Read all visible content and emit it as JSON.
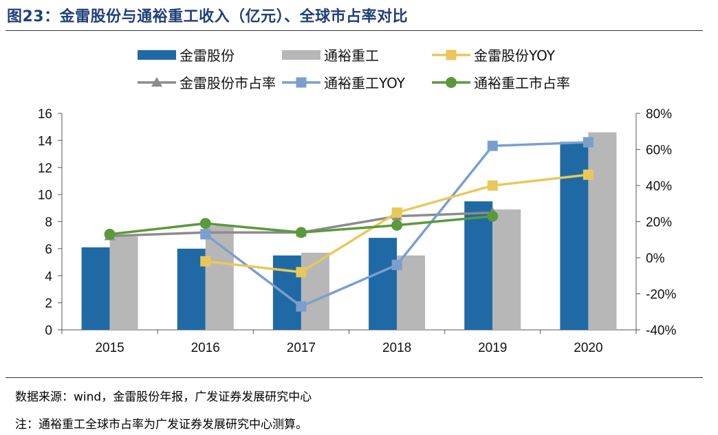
{
  "figure": {
    "title": "图23：金雷股份与通裕重工收入（亿元）、全球市占率对比",
    "source": "数据来源：wind，金雷股份年报，广发证券发展研究中心",
    "note": "注：通裕重工全球市占率为广发证券发展研究中心测算。"
  },
  "colors": {
    "title": "#1f3f77",
    "jinlei_bar": "#1f6aa5",
    "tongyu_bar": "#b7b7b7",
    "jinlei_yoy": "#e8c85a",
    "jinlei_share": "#8c8c8c",
    "tongyu_yoy": "#7a9fcf",
    "tongyu_share": "#5a9a3a"
  },
  "chart_data": {
    "type": "bar",
    "categories": [
      "2015",
      "2016",
      "2017",
      "2018",
      "2019",
      "2020"
    ],
    "left_axis": {
      "ylim": [
        0,
        16
      ],
      "ticks": [
        "0",
        "2",
        "4",
        "6",
        "8",
        "10",
        "12",
        "14",
        "16"
      ]
    },
    "right_axis": {
      "ylim": [
        -40,
        80
      ],
      "ticks": [
        "-40%",
        "-20%",
        "0%",
        "20%",
        "40%",
        "60%",
        "80%"
      ]
    },
    "legend": [
      {
        "name": "金雷股份",
        "kind": "bar",
        "color": "#1f6aa5"
      },
      {
        "name": "通裕重工",
        "kind": "bar",
        "color": "#b7b7b7"
      },
      {
        "name": "金雷股份YOY",
        "kind": "line-square",
        "color": "#e8c85a"
      },
      {
        "name": "金雷股份市占率",
        "kind": "line-triangle",
        "color": "#8c8c8c"
      },
      {
        "name": "通裕重工YOY",
        "kind": "line-square",
        "color": "#7a9fcf"
      },
      {
        "name": "通裕重工市占率",
        "kind": "line-circle",
        "color": "#5a9a3a"
      }
    ],
    "bar_series": [
      {
        "name": "金雷股份",
        "values": [
          6.1,
          6.0,
          5.5,
          6.8,
          9.5,
          13.9
        ]
      },
      {
        "name": "通裕重工",
        "values": [
          6.9,
          7.7,
          5.7,
          5.5,
          8.9,
          14.6
        ]
      }
    ],
    "line_series": [
      {
        "name": "金雷股份市占率",
        "axis": "right",
        "marker": "triangle",
        "values": [
          12,
          14,
          14,
          23,
          25,
          null
        ]
      },
      {
        "name": "通裕重工YOY",
        "axis": "right",
        "marker": "square",
        "values": [
          null,
          13,
          -27,
          -4,
          62,
          64
        ]
      },
      {
        "name": "金雷股份YOY",
        "axis": "right",
        "marker": "square",
        "values": [
          null,
          -2,
          -8,
          25,
          40,
          46
        ]
      },
      {
        "name": "通裕重工市占率",
        "axis": "right",
        "marker": "circle",
        "values": [
          13,
          19,
          14,
          18,
          23,
          null
        ]
      }
    ]
  }
}
